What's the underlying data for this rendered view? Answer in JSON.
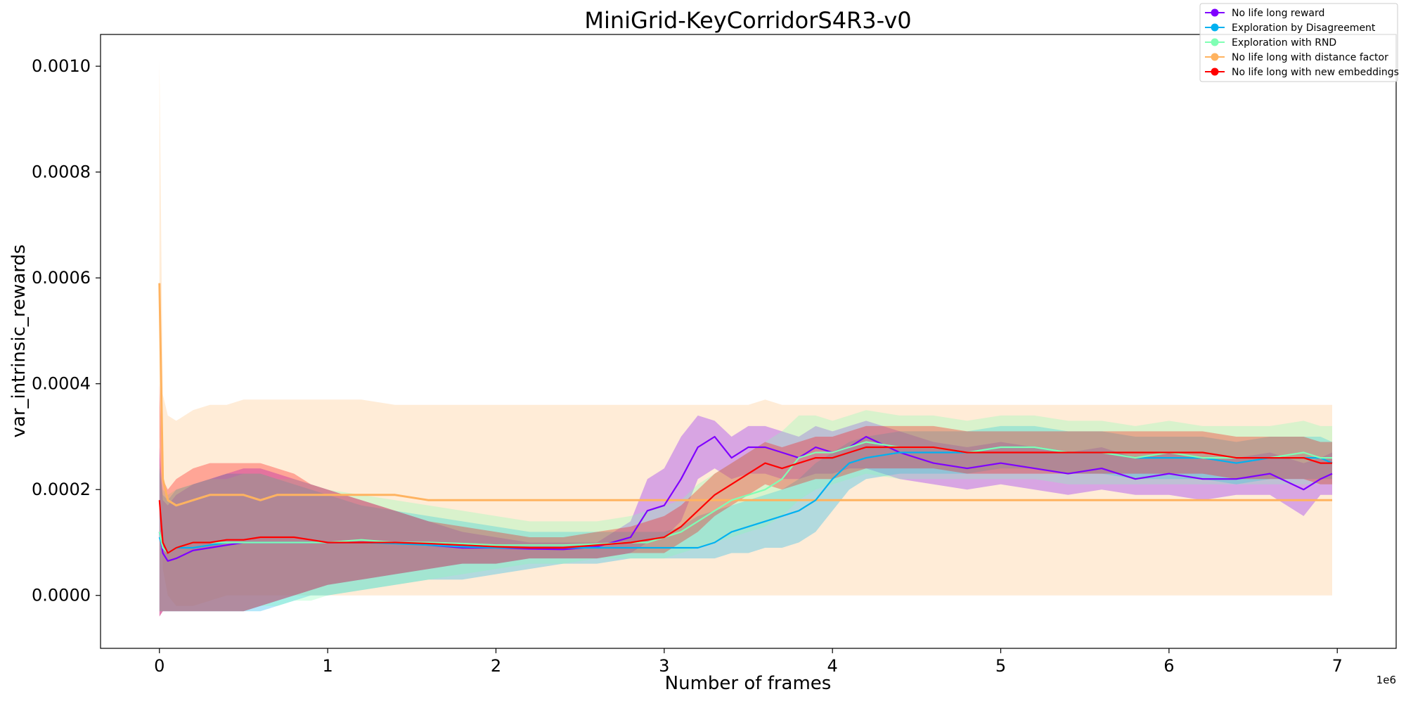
{
  "chart_data": {
    "type": "line",
    "title": "MiniGrid-KeyCorridorS4R3-v0",
    "xlabel": "Number of frames",
    "ylabel": "var_intrinsic_rewards",
    "x_offset_label": "1e6",
    "xlim": [
      -0.35,
      7.35
    ],
    "ylim": [
      -0.0001,
      0.00106
    ],
    "xticks": [
      0,
      1,
      2,
      3,
      4,
      5,
      6,
      7
    ],
    "xtick_labels": [
      "0",
      "1",
      "2",
      "3",
      "4",
      "5",
      "6",
      "7"
    ],
    "yticks": [
      0.0,
      0.0002,
      0.0004,
      0.0006,
      0.0008,
      0.001
    ],
    "ytick_labels": [
      "0.0000",
      "0.0002",
      "0.0004",
      "0.0006",
      "0.0008",
      "0.0010"
    ],
    "legend_position": "top-right",
    "grid": false,
    "x": [
      0,
      0.02,
      0.05,
      0.1,
      0.2,
      0.3,
      0.4,
      0.5,
      0.6,
      0.7,
      0.8,
      0.9,
      1.0,
      1.2,
      1.4,
      1.6,
      1.8,
      2.0,
      2.2,
      2.4,
      2.6,
      2.8,
      2.9,
      3.0,
      3.1,
      3.2,
      3.3,
      3.4,
      3.5,
      3.6,
      3.7,
      3.8,
      3.9,
      4.0,
      4.1,
      4.2,
      4.4,
      4.6,
      4.8,
      5.0,
      5.2,
      5.4,
      5.6,
      5.8,
      6.0,
      6.2,
      6.4,
      6.6,
      6.8,
      6.9,
      6.97
    ],
    "series": [
      {
        "name": "No life long reward",
        "color": "#7f00ff",
        "values": [
          0.00012,
          8e-05,
          6.5e-05,
          7e-05,
          8.5e-05,
          9e-05,
          9.5e-05,
          0.0001,
          0.0001,
          0.0001,
          0.0001,
          0.0001,
          0.0001,
          0.0001,
          0.0001,
          9.5e-05,
          9e-05,
          9e-05,
          8.8e-05,
          8.7e-05,
          9.2e-05,
          0.00011,
          0.00016,
          0.00017,
          0.00022,
          0.00028,
          0.0003,
          0.00026,
          0.00028,
          0.00028,
          0.00027,
          0.00026,
          0.00028,
          0.00027,
          0.00028,
          0.0003,
          0.00027,
          0.00025,
          0.00024,
          0.00025,
          0.00024,
          0.00023,
          0.00024,
          0.00022,
          0.00023,
          0.00022,
          0.00022,
          0.00023,
          0.0002,
          0.00022,
          0.00023
        ],
        "lower": [
          -4e-05,
          -3e-05,
          -3e-05,
          -3e-05,
          -3e-05,
          -3e-05,
          -3e-05,
          -3e-05,
          -2e-05,
          -1e-05,
          0.0,
          1e-05,
          2e-05,
          3e-05,
          4e-05,
          5e-05,
          6e-05,
          6e-05,
          7e-05,
          7e-05,
          7e-05,
          8e-05,
          0.0001,
          0.00011,
          0.00014,
          0.00022,
          0.00024,
          0.00022,
          0.00023,
          0.00023,
          0.00022,
          0.00022,
          0.00023,
          0.00023,
          0.00024,
          0.00024,
          0.00022,
          0.00021,
          0.0002,
          0.00021,
          0.0002,
          0.00019,
          0.0002,
          0.00019,
          0.00019,
          0.00018,
          0.00019,
          0.00019,
          0.00015,
          0.00019,
          0.00019
        ],
        "upper": [
          0.00028,
          0.00018,
          0.00017,
          0.00019,
          0.00021,
          0.00022,
          0.00023,
          0.00024,
          0.00024,
          0.00023,
          0.00022,
          0.00021,
          0.0002,
          0.00018,
          0.00016,
          0.00014,
          0.00012,
          0.00011,
          0.0001,
          0.0001,
          0.0001,
          0.00014,
          0.00022,
          0.00024,
          0.0003,
          0.00034,
          0.00033,
          0.0003,
          0.00032,
          0.00032,
          0.00031,
          0.0003,
          0.00032,
          0.00031,
          0.00032,
          0.00033,
          0.00031,
          0.00029,
          0.00028,
          0.00029,
          0.00028,
          0.00027,
          0.00028,
          0.00026,
          0.00027,
          0.00026,
          0.00026,
          0.00027,
          0.00025,
          0.00026,
          0.00027
        ]
      },
      {
        "name": "Exploration by Disagreement",
        "color": "#00b1f0",
        "values": [
          0.00011,
          9e-05,
          8e-05,
          9e-05,
          9e-05,
          9.5e-05,
          0.0001,
          0.0001,
          0.0001,
          0.0001,
          0.0001,
          0.0001,
          0.0001,
          0.0001,
          9.8e-05,
          9.5e-05,
          9.2e-05,
          9e-05,
          9e-05,
          9e-05,
          9e-05,
          9e-05,
          9e-05,
          9e-05,
          9e-05,
          9e-05,
          0.0001,
          0.00012,
          0.00013,
          0.00014,
          0.00015,
          0.00016,
          0.00018,
          0.00022,
          0.00025,
          0.00026,
          0.00027,
          0.00027,
          0.00027,
          0.00028,
          0.00028,
          0.00027,
          0.00027,
          0.00026,
          0.00026,
          0.00026,
          0.00025,
          0.00026,
          0.00026,
          0.00026,
          0.00025
        ],
        "lower": [
          -3e-05,
          -3e-05,
          -3e-05,
          -3e-05,
          -3e-05,
          -3e-05,
          -3e-05,
          -3e-05,
          -3e-05,
          -2e-05,
          -1e-05,
          0.0,
          0.0,
          1e-05,
          2e-05,
          3e-05,
          3e-05,
          4e-05,
          5e-05,
          6e-05,
          6e-05,
          7e-05,
          7e-05,
          7e-05,
          7e-05,
          7e-05,
          7e-05,
          8e-05,
          8e-05,
          9e-05,
          9e-05,
          0.0001,
          0.00012,
          0.00016,
          0.0002,
          0.00022,
          0.00023,
          0.00023,
          0.00023,
          0.00024,
          0.00024,
          0.00023,
          0.00023,
          0.00022,
          0.00022,
          0.00022,
          0.00021,
          0.00022,
          0.00022,
          0.00022,
          0.00022
        ],
        "upper": [
          0.00024,
          0.00019,
          0.00018,
          0.0002,
          0.00021,
          0.00022,
          0.00023,
          0.00023,
          0.00023,
          0.00022,
          0.00021,
          0.0002,
          0.00019,
          0.00017,
          0.00016,
          0.00015,
          0.00014,
          0.00013,
          0.00012,
          0.00012,
          0.00012,
          0.00012,
          0.00012,
          0.00012,
          0.00013,
          0.00015,
          0.00016,
          0.00017,
          0.00018,
          0.00019,
          0.0002,
          0.00022,
          0.00025,
          0.00027,
          0.00029,
          0.0003,
          0.00031,
          0.00031,
          0.00031,
          0.00032,
          0.00032,
          0.00031,
          0.00031,
          0.0003,
          0.0003,
          0.0003,
          0.00029,
          0.0003,
          0.0003,
          0.0003,
          0.00029
        ]
      },
      {
        "name": "Exploration with RND",
        "color": "#80ffb4",
        "values": [
          0.00012,
          9e-05,
          8e-05,
          9e-05,
          0.0001,
          0.0001,
          0.0001,
          0.0001,
          0.0001,
          0.0001,
          0.0001,
          0.0001,
          0.0001,
          0.000105,
          0.0001,
          0.0001,
          9.8e-05,
          9.5e-05,
          9.5e-05,
          9.5e-05,
          9.7e-05,
          0.0001,
          0.0001,
          0.00011,
          0.00012,
          0.00014,
          0.00016,
          0.00018,
          0.00019,
          0.0002,
          0.00022,
          0.00026,
          0.00027,
          0.00027,
          0.00028,
          0.00029,
          0.00028,
          0.00028,
          0.00027,
          0.00028,
          0.00028,
          0.00027,
          0.00027,
          0.00026,
          0.00027,
          0.00026,
          0.00026,
          0.00026,
          0.00027,
          0.00026,
          0.00026
        ],
        "lower": [
          -3e-05,
          -3e-05,
          -3e-05,
          -3e-05,
          -3e-05,
          -3e-05,
          -3e-05,
          -3e-05,
          -2e-05,
          -2e-05,
          -1e-05,
          -1e-05,
          0.0,
          1e-05,
          2e-05,
          3e-05,
          4e-05,
          5e-05,
          6e-05,
          6e-05,
          7e-05,
          7e-05,
          7e-05,
          7e-05,
          8e-05,
          9e-05,
          0.0001,
          0.00011,
          0.00012,
          0.00013,
          0.00015,
          0.00018,
          0.0002,
          0.00021,
          0.00022,
          0.00023,
          0.00022,
          0.00022,
          0.00022,
          0.00022,
          0.00022,
          0.00021,
          0.00021,
          0.00021,
          0.00021,
          0.00021,
          0.00021,
          0.00021,
          0.00021,
          0.00021,
          0.00021
        ],
        "upper": [
          0.00025,
          0.0002,
          0.00019,
          0.0002,
          0.00021,
          0.00022,
          0.00022,
          0.00023,
          0.00023,
          0.00022,
          0.00022,
          0.00021,
          0.0002,
          0.00019,
          0.00018,
          0.00017,
          0.00016,
          0.00015,
          0.00014,
          0.00014,
          0.00014,
          0.00015,
          0.00016,
          0.00017,
          0.00018,
          0.00021,
          0.00023,
          0.00025,
          0.00027,
          0.00029,
          0.00031,
          0.00034,
          0.00034,
          0.00033,
          0.00034,
          0.00035,
          0.00034,
          0.00034,
          0.00033,
          0.00034,
          0.00034,
          0.00033,
          0.00033,
          0.00032,
          0.00033,
          0.00032,
          0.00032,
          0.00032,
          0.00033,
          0.00032,
          0.00032
        ]
      },
      {
        "name": "No life long with distance factor",
        "color": "#ffb360",
        "values": [
          0.00059,
          0.00022,
          0.00018,
          0.00017,
          0.00018,
          0.00019,
          0.00019,
          0.00019,
          0.00018,
          0.00019,
          0.00019,
          0.00019,
          0.00019,
          0.00019,
          0.00019,
          0.00018,
          0.00018,
          0.00018,
          0.00018,
          0.00018,
          0.00018,
          0.00018,
          0.00018,
          0.00018,
          0.00018,
          0.00018,
          0.00018,
          0.00018,
          0.00018,
          0.00018,
          0.00018,
          0.00018,
          0.00018,
          0.00018,
          0.00018,
          0.00018,
          0.00018,
          0.00018,
          0.00018,
          0.00018,
          0.00018,
          0.00018,
          0.00018,
          0.00018,
          0.00018,
          0.00018,
          0.00018,
          0.00018,
          0.00018,
          0.00018,
          0.00018
        ],
        "lower": [
          0.0003,
          5e-05,
          0.0,
          -2e-05,
          -2e-05,
          -1e-05,
          0.0,
          0.0,
          0.0,
          0.0,
          0.0,
          0.0,
          0.0,
          0.0,
          0.0,
          0.0,
          0.0,
          0.0,
          0.0,
          0.0,
          0.0,
          0.0,
          0.0,
          0.0,
          0.0,
          0.0,
          0.0,
          0.0,
          0.0,
          0.0,
          0.0,
          0.0,
          0.0,
          0.0,
          0.0,
          0.0,
          0.0,
          0.0,
          0.0,
          0.0,
          0.0,
          0.0,
          0.0,
          0.0,
          0.0,
          0.0,
          0.0,
          0.0,
          0.0,
          0.0,
          0.0
        ],
        "upper": [
          0.00101,
          0.00038,
          0.00034,
          0.00033,
          0.00035,
          0.00036,
          0.00036,
          0.00037,
          0.00037,
          0.00037,
          0.00037,
          0.00037,
          0.00037,
          0.00037,
          0.00036,
          0.00036,
          0.00036,
          0.00036,
          0.00036,
          0.00036,
          0.00036,
          0.00036,
          0.00036,
          0.00036,
          0.00036,
          0.00036,
          0.00036,
          0.00036,
          0.00036,
          0.00037,
          0.00036,
          0.00036,
          0.00036,
          0.00036,
          0.00036,
          0.00036,
          0.00036,
          0.00036,
          0.00036,
          0.00036,
          0.00036,
          0.00036,
          0.00036,
          0.00036,
          0.00036,
          0.00036,
          0.00036,
          0.00036,
          0.00036,
          0.00036,
          0.00036
        ]
      },
      {
        "name": "No life long with new embeddings",
        "color": "#ff0000",
        "values": [
          0.00018,
          0.0001,
          8e-05,
          9e-05,
          0.0001,
          0.0001,
          0.000105,
          0.000105,
          0.00011,
          0.00011,
          0.00011,
          0.000105,
          0.0001,
          0.0001,
          0.0001,
          9.8e-05,
          9.5e-05,
          9.2e-05,
          9e-05,
          9e-05,
          9.5e-05,
          0.0001,
          0.000105,
          0.00011,
          0.00013,
          0.00016,
          0.00019,
          0.00021,
          0.00023,
          0.00025,
          0.00024,
          0.00025,
          0.00026,
          0.00026,
          0.00027,
          0.00028,
          0.00028,
          0.00028,
          0.00027,
          0.00027,
          0.00027,
          0.00027,
          0.00027,
          0.00027,
          0.00027,
          0.00027,
          0.00026,
          0.00026,
          0.00026,
          0.00025,
          0.00025
        ],
        "lower": [
          -4e-05,
          -3e-05,
          -3e-05,
          -3e-05,
          -3e-05,
          -3e-05,
          -3e-05,
          -3e-05,
          -2e-05,
          -1e-05,
          0.0,
          1e-05,
          2e-05,
          3e-05,
          4e-05,
          5e-05,
          6e-05,
          6e-05,
          7e-05,
          7e-05,
          7e-05,
          8e-05,
          8e-05,
          8e-05,
          0.0001,
          0.00012,
          0.00015,
          0.00017,
          0.00019,
          0.00021,
          0.0002,
          0.00021,
          0.00022,
          0.00022,
          0.00023,
          0.00024,
          0.00024,
          0.00024,
          0.00023,
          0.00023,
          0.00023,
          0.00023,
          0.00023,
          0.00023,
          0.00023,
          0.00023,
          0.00022,
          0.00022,
          0.00022,
          0.00021,
          0.00021
        ],
        "upper": [
          0.0004,
          0.00022,
          0.0002,
          0.00022,
          0.00024,
          0.00025,
          0.00025,
          0.00025,
          0.00025,
          0.00024,
          0.00023,
          0.00021,
          0.0002,
          0.00018,
          0.00016,
          0.00014,
          0.00013,
          0.00012,
          0.00011,
          0.00011,
          0.00012,
          0.00013,
          0.00014,
          0.00015,
          0.00017,
          0.0002,
          0.00023,
          0.00025,
          0.00027,
          0.00029,
          0.00028,
          0.00029,
          0.0003,
          0.0003,
          0.00031,
          0.00032,
          0.00032,
          0.00032,
          0.00031,
          0.00031,
          0.00031,
          0.00031,
          0.00031,
          0.00031,
          0.00031,
          0.00031,
          0.0003,
          0.0003,
          0.0003,
          0.00029,
          0.00029
        ]
      }
    ]
  }
}
